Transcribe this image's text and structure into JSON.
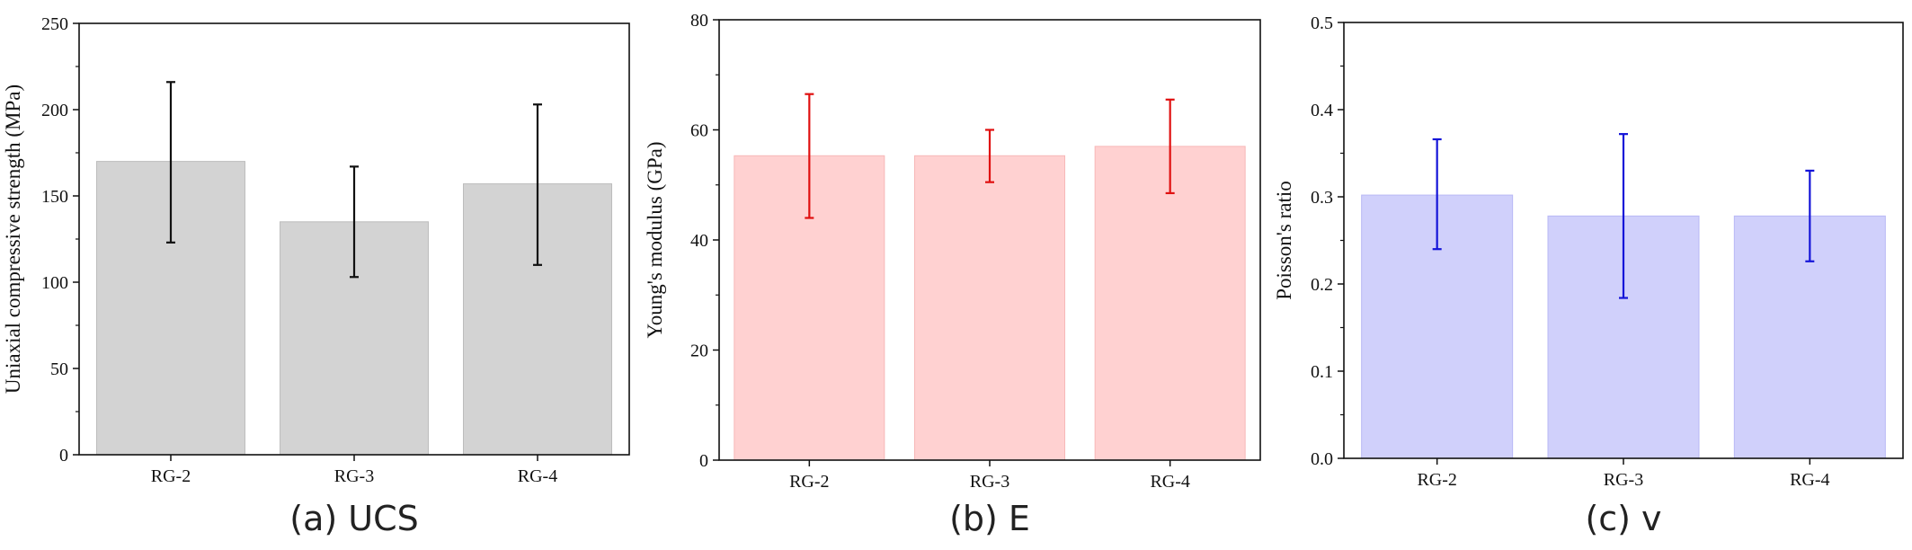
{
  "chart_data": [
    {
      "type": "bar",
      "caption": "(a) UCS",
      "ylabel": "Uniaxial compressive strength (MPa)",
      "categories": [
        "RG-2",
        "RG-3",
        "RG-4"
      ],
      "values": [
        170,
        135,
        157
      ],
      "error_low": [
        123,
        103,
        110
      ],
      "error_high": [
        216,
        167,
        203
      ],
      "ylim": [
        0,
        250
      ],
      "yticks": [
        0,
        50,
        100,
        150,
        200,
        250
      ],
      "ytick_labels": [
        "0",
        "50",
        "100",
        "150",
        "200",
        "250"
      ],
      "grid": false,
      "colors": {
        "bar_fill": "#d3d3d3",
        "bar_stroke": "#bdbdbd",
        "error_bar": "#111111"
      }
    },
    {
      "type": "bar",
      "caption": "(b) E",
      "ylabel": "Young's modulus (GPa)",
      "categories": [
        "RG-2",
        "RG-3",
        "RG-4"
      ],
      "values": [
        55.3,
        55.3,
        57
      ],
      "error_low": [
        44,
        50.5,
        48.5
      ],
      "error_high": [
        66.5,
        60,
        65.5
      ],
      "ylim": [
        0,
        80
      ],
      "yticks": [
        0,
        20,
        40,
        60,
        80
      ],
      "ytick_labels": [
        "0",
        "20",
        "40",
        "60",
        "80"
      ],
      "grid": false,
      "colors": {
        "bar_fill": "#ffd1d1",
        "bar_stroke": "#f7b8b8",
        "error_bar": "#e01010"
      }
    },
    {
      "type": "bar",
      "caption": "(c) v",
      "ylabel": "Poisson's ratio",
      "categories": [
        "RG-2",
        "RG-3",
        "RG-4"
      ],
      "values": [
        0.302,
        0.278,
        0.278
      ],
      "error_low": [
        0.24,
        0.184,
        0.226
      ],
      "error_high": [
        0.366,
        0.372,
        0.33
      ],
      "ylim": [
        0,
        0.5
      ],
      "yticks": [
        0,
        0.1,
        0.2,
        0.3,
        0.4,
        0.5
      ],
      "ytick_labels": [
        "0.0",
        "0.1",
        "0.2",
        "0.3",
        "0.4",
        "0.5"
      ],
      "grid": false,
      "colors": {
        "bar_fill": "#d0d0fb",
        "bar_stroke": "#b9b9f5",
        "error_bar": "#1414d8"
      }
    }
  ]
}
